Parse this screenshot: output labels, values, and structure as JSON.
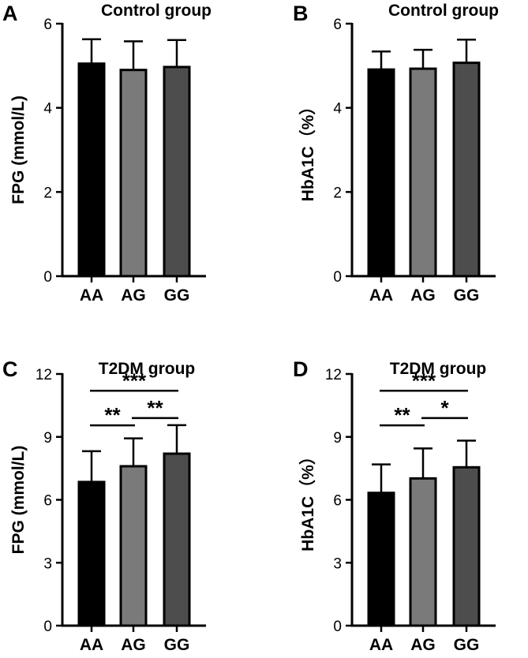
{
  "chart_data": [
    {
      "panel": "A",
      "type": "bar",
      "title": "Control group",
      "ylabel": "FPG (mmol/L)",
      "xlabel": "",
      "categories": [
        "AA",
        "AG",
        "GG"
      ],
      "values": [
        5.05,
        4.9,
        4.97
      ],
      "errors": [
        0.58,
        0.68,
        0.64
      ],
      "ylim": [
        0,
        6
      ],
      "yticks": [
        0,
        2,
        4,
        6
      ],
      "bar_colors": [
        "#000000",
        "#7a7a7a",
        "#4d4d4d"
      ],
      "significance": []
    },
    {
      "panel": "B",
      "type": "bar",
      "title": "Control group",
      "ylabel": "HbA1C（%）",
      "xlabel": "",
      "categories": [
        "AA",
        "AG",
        "GG"
      ],
      "values": [
        4.91,
        4.93,
        5.07
      ],
      "errors": [
        0.43,
        0.45,
        0.55
      ],
      "ylim": [
        0,
        6
      ],
      "yticks": [
        0,
        2,
        4,
        6
      ],
      "bar_colors": [
        "#000000",
        "#7a7a7a",
        "#4d4d4d"
      ],
      "significance": []
    },
    {
      "panel": "C",
      "type": "bar",
      "title": "T2DM group",
      "ylabel": "FPG (mmol/L)",
      "xlabel": "",
      "categories": [
        "AA",
        "AG",
        "GG"
      ],
      "values": [
        6.85,
        7.6,
        8.2
      ],
      "errors": [
        1.47,
        1.33,
        1.36
      ],
      "ylim": [
        0,
        12
      ],
      "yticks": [
        0,
        3,
        6,
        9,
        12
      ],
      "bar_colors": [
        "#000000",
        "#7a7a7a",
        "#4d4d4d"
      ],
      "significance": [
        {
          "from": 0,
          "to": 1,
          "y": 9.55,
          "label": "**"
        },
        {
          "from": 1,
          "to": 2,
          "y": 9.9,
          "label": "**"
        },
        {
          "from": 0,
          "to": 2,
          "y": 11.2,
          "label": "***"
        }
      ]
    },
    {
      "panel": "D",
      "type": "bar",
      "title": "T2DM group",
      "ylabel": "HbA1C（%）",
      "xlabel": "",
      "categories": [
        "AA",
        "AG",
        "GG"
      ],
      "values": [
        6.33,
        7.02,
        7.55
      ],
      "errors": [
        1.36,
        1.43,
        1.27
      ],
      "ylim": [
        0,
        12
      ],
      "yticks": [
        0,
        3,
        6,
        9,
        12
      ],
      "bar_colors": [
        "#000000",
        "#7a7a7a",
        "#4d4d4d"
      ],
      "significance": [
        {
          "from": 0,
          "to": 1,
          "y": 9.55,
          "label": "**"
        },
        {
          "from": 1,
          "to": 2,
          "y": 9.9,
          "label": "*"
        },
        {
          "from": 0,
          "to": 2,
          "y": 11.2,
          "label": "***"
        }
      ]
    }
  ]
}
